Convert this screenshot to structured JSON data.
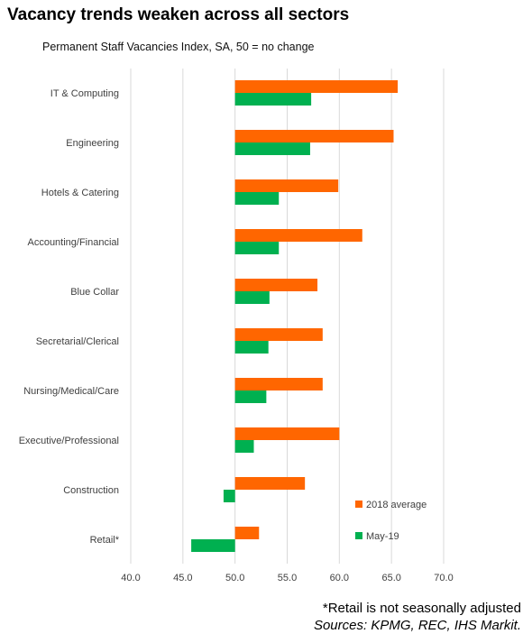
{
  "title": "Vacancy trends weaken across all sectors",
  "subtitle": "Permanent Staff Vacancies Index, SA, 50 = no change",
  "footnote": {
    "note": "*Retail is not seasonally adjusted",
    "sources": "Sources: KPMG, REC, IHS Markit."
  },
  "colors": {
    "series_2018": "#FF6600",
    "series_may19": "#00B050",
    "grid": "#D9D9D9",
    "text": "#404040"
  },
  "chart_data": {
    "type": "bar",
    "orientation": "horizontal",
    "baseline": 50,
    "categories": [
      "IT & Computing",
      "Engineering",
      "Hotels & Catering",
      "Accounting/Financial",
      "Blue Collar",
      "Secretarial/Clerical",
      "Nursing/Medical/Care",
      "Executive/Professional",
      "Construction",
      "Retail*"
    ],
    "series": [
      {
        "name": "2018 average",
        "values": [
          65.6,
          65.2,
          59.9,
          62.2,
          57.9,
          58.4,
          58.4,
          60.0,
          56.7,
          52.3
        ]
      },
      {
        "name": "May-19",
        "values": [
          57.3,
          57.2,
          54.2,
          54.2,
          53.3,
          53.2,
          53.0,
          51.8,
          48.9,
          45.8
        ]
      }
    ],
    "xlim": [
      40,
      70
    ],
    "xticks": [
      "40.0",
      "45.0",
      "50.0",
      "55.0",
      "60.0",
      "65.0",
      "70.0"
    ],
    "grid": true,
    "legend_position": "lower-right"
  }
}
